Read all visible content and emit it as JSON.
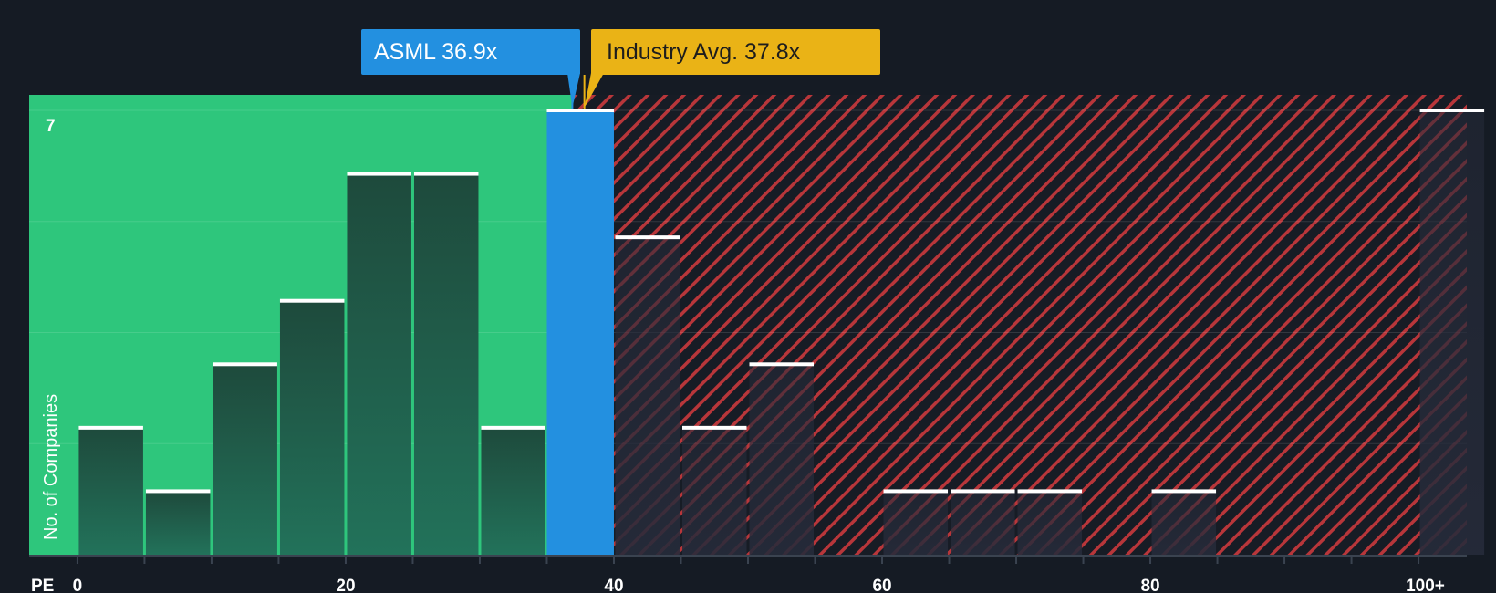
{
  "chart_data": {
    "type": "bar",
    "xlabel": "PE",
    "ylabel": "No. of Companies",
    "y_top_label": "7",
    "ylim": [
      0,
      7
    ],
    "xlim": [
      -3.6,
      103.6
    ],
    "bin_width": 5,
    "x_ticks": [
      {
        "value": 0,
        "label": "0"
      },
      {
        "value": 20,
        "label": "20"
      },
      {
        "value": 40,
        "label": "40"
      },
      {
        "value": 60,
        "label": "60"
      },
      {
        "value": 80,
        "label": "80"
      },
      {
        "value": 100,
        "label": "100+"
      }
    ],
    "bins": [
      {
        "start": 0,
        "count": 2
      },
      {
        "start": 5,
        "count": 1
      },
      {
        "start": 10,
        "count": 3
      },
      {
        "start": 15,
        "count": 4
      },
      {
        "start": 20,
        "count": 6
      },
      {
        "start": 25,
        "count": 6
      },
      {
        "start": 30,
        "count": 2
      },
      {
        "start": 35,
        "count": 7,
        "highlight": true
      },
      {
        "start": 40,
        "count": 5
      },
      {
        "start": 45,
        "count": 2
      },
      {
        "start": 50,
        "count": 3
      },
      {
        "start": 55,
        "count": 0
      },
      {
        "start": 60,
        "count": 1
      },
      {
        "start": 65,
        "count": 1
      },
      {
        "start": 70,
        "count": 1
      },
      {
        "start": 75,
        "count": 0
      },
      {
        "start": 80,
        "count": 1
      },
      {
        "start": 85,
        "count": 0
      },
      {
        "start": 90,
        "count": 0
      },
      {
        "start": 95,
        "count": 0
      },
      {
        "start": 100,
        "count": 7
      }
    ],
    "company": {
      "label": "ASML 36.9x",
      "value": 36.9
    },
    "industry": {
      "label": "Industry Avg. 37.8x",
      "value": 37.8
    }
  },
  "colors": {
    "background": "#151b24",
    "fair_zone": "#2ec67c",
    "bar": "#1f4a3d",
    "highlight_bar": "#2390e0",
    "hatch": "#c0393d",
    "industry": "#eab316",
    "text": "#ffffff"
  }
}
